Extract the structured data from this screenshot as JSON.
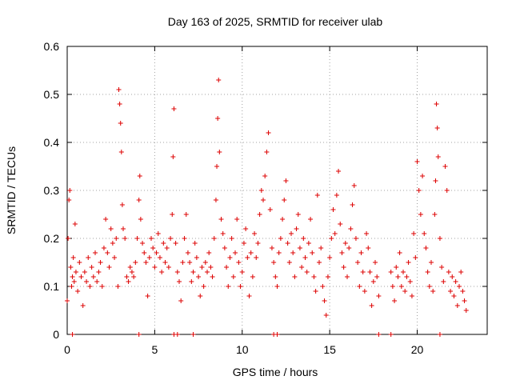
{
  "chart_data": {
    "type": "scatter",
    "title": "Day 163 of 2025, SRMTID for receiver ulab",
    "xlabel": "GPS time / hours",
    "ylabel": "SRMTID / TECUs",
    "xlim": [
      0,
      24
    ],
    "ylim": [
      0,
      0.6
    ],
    "xticks": [
      0,
      5,
      10,
      15,
      20
    ],
    "yticks": [
      0,
      0.1,
      0.2,
      0.3,
      0.4,
      0.5,
      0.6
    ],
    "ytick_labels": [
      "0",
      "0.1",
      "0.2",
      "0.3",
      "0.4",
      "0.5",
      "0.6"
    ],
    "grid": true,
    "marker": "+",
    "color": "#dd0000",
    "series": [
      {
        "name": "SRMTID",
        "points": [
          [
            0.0,
            0.07
          ],
          [
            0.05,
            0.2
          ],
          [
            0.1,
            0.28
          ],
          [
            0.15,
            0.3
          ],
          [
            0.2,
            0.14
          ],
          [
            0.25,
            0.1
          ],
          [
            0.3,
            0.12
          ],
          [
            0.35,
            0.16
          ],
          [
            0.4,
            0.11
          ],
          [
            0.45,
            0.23
          ],
          [
            0.5,
            0.13
          ],
          [
            0.6,
            0.09
          ],
          [
            0.7,
            0.15
          ],
          [
            0.8,
            0.12
          ],
          [
            0.9,
            0.06
          ],
          [
            1.0,
            0.13
          ],
          [
            1.1,
            0.11
          ],
          [
            1.2,
            0.16
          ],
          [
            1.3,
            0.1
          ],
          [
            1.4,
            0.14
          ],
          [
            1.5,
            0.12
          ],
          [
            1.6,
            0.17
          ],
          [
            1.7,
            0.11
          ],
          [
            1.8,
            0.13
          ],
          [
            1.9,
            0.15
          ],
          [
            2.0,
            0.1
          ],
          [
            2.1,
            0.18
          ],
          [
            2.2,
            0.24
          ],
          [
            2.3,
            0.17
          ],
          [
            2.4,
            0.14
          ],
          [
            2.5,
            0.22
          ],
          [
            2.6,
            0.19
          ],
          [
            2.7,
            0.16
          ],
          [
            2.8,
            0.2
          ],
          [
            2.9,
            0.1
          ],
          [
            2.95,
            0.51
          ],
          [
            3.0,
            0.48
          ],
          [
            3.05,
            0.44
          ],
          [
            3.1,
            0.38
          ],
          [
            3.15,
            0.27
          ],
          [
            3.2,
            0.22
          ],
          [
            3.3,
            0.2
          ],
          [
            3.4,
            0.12
          ],
          [
            3.5,
            0.11
          ],
          [
            3.6,
            0.14
          ],
          [
            3.7,
            0.13
          ],
          [
            3.8,
            0.12
          ],
          [
            3.9,
            0.15
          ],
          [
            4.0,
            0.2
          ],
          [
            4.1,
            0.28
          ],
          [
            4.15,
            0.33
          ],
          [
            4.2,
            0.24
          ],
          [
            4.3,
            0.19
          ],
          [
            4.4,
            0.17
          ],
          [
            4.5,
            0.15
          ],
          [
            4.6,
            0.08
          ],
          [
            4.7,
            0.16
          ],
          [
            4.8,
            0.2
          ],
          [
            4.9,
            0.18
          ],
          [
            5.0,
            0.14
          ],
          [
            5.1,
            0.17
          ],
          [
            5.2,
            0.21
          ],
          [
            5.3,
            0.16
          ],
          [
            5.4,
            0.13
          ],
          [
            5.5,
            0.19
          ],
          [
            5.6,
            0.15
          ],
          [
            5.7,
            0.18
          ],
          [
            5.8,
            0.14
          ],
          [
            5.9,
            0.2
          ],
          [
            6.0,
            0.25
          ],
          [
            6.05,
            0.37
          ],
          [
            6.1,
            0.47
          ],
          [
            6.2,
            0.19
          ],
          [
            6.3,
            0.13
          ],
          [
            6.4,
            0.11
          ],
          [
            6.5,
            0.07
          ],
          [
            6.6,
            0.15
          ],
          [
            6.7,
            0.2
          ],
          [
            6.8,
            0.25
          ],
          [
            6.9,
            0.17
          ],
          [
            7.0,
            0.15
          ],
          [
            7.1,
            0.11
          ],
          [
            7.2,
            0.13
          ],
          [
            7.3,
            0.19
          ],
          [
            7.4,
            0.16
          ],
          [
            7.5,
            0.12
          ],
          [
            7.6,
            0.08
          ],
          [
            7.7,
            0.14
          ],
          [
            7.8,
            0.1
          ],
          [
            7.9,
            0.15
          ],
          [
            8.0,
            0.13
          ],
          [
            8.1,
            0.17
          ],
          [
            8.2,
            0.14
          ],
          [
            8.3,
            0.12
          ],
          [
            8.4,
            0.2
          ],
          [
            8.5,
            0.28
          ],
          [
            8.55,
            0.35
          ],
          [
            8.6,
            0.45
          ],
          [
            8.65,
            0.53
          ],
          [
            8.7,
            0.38
          ],
          [
            8.8,
            0.24
          ],
          [
            8.9,
            0.21
          ],
          [
            9.0,
            0.18
          ],
          [
            9.1,
            0.14
          ],
          [
            9.2,
            0.1
          ],
          [
            9.3,
            0.16
          ],
          [
            9.4,
            0.2
          ],
          [
            9.5,
            0.12
          ],
          [
            9.6,
            0.17
          ],
          [
            9.7,
            0.24
          ],
          [
            9.8,
            0.15
          ],
          [
            9.9,
            0.1
          ],
          [
            10.0,
            0.13
          ],
          [
            10.1,
            0.19
          ],
          [
            10.2,
            0.22
          ],
          [
            10.3,
            0.16
          ],
          [
            10.4,
            0.08
          ],
          [
            10.5,
            0.17
          ],
          [
            10.6,
            0.12
          ],
          [
            10.7,
            0.21
          ],
          [
            10.8,
            0.16
          ],
          [
            10.9,
            0.19
          ],
          [
            11.0,
            0.25
          ],
          [
            11.1,
            0.3
          ],
          [
            11.2,
            0.28
          ],
          [
            11.3,
            0.33
          ],
          [
            11.4,
            0.38
          ],
          [
            11.5,
            0.42
          ],
          [
            11.6,
            0.26
          ],
          [
            11.7,
            0.18
          ],
          [
            11.8,
            0.15
          ],
          [
            11.9,
            0.12
          ],
          [
            12.0,
            0.1
          ],
          [
            12.1,
            0.17
          ],
          [
            12.2,
            0.2
          ],
          [
            12.3,
            0.24
          ],
          [
            12.4,
            0.28
          ],
          [
            12.5,
            0.32
          ],
          [
            12.6,
            0.19
          ],
          [
            12.7,
            0.15
          ],
          [
            12.8,
            0.21
          ],
          [
            12.9,
            0.17
          ],
          [
            13.0,
            0.12
          ],
          [
            13.1,
            0.22
          ],
          [
            13.2,
            0.25
          ],
          [
            13.3,
            0.18
          ],
          [
            13.4,
            0.14
          ],
          [
            13.5,
            0.2
          ],
          [
            13.6,
            0.16
          ],
          [
            13.7,
            0.13
          ],
          [
            13.8,
            0.19
          ],
          [
            13.9,
            0.24
          ],
          [
            14.0,
            0.17
          ],
          [
            14.1,
            0.12
          ],
          [
            14.2,
            0.09
          ],
          [
            14.3,
            0.29
          ],
          [
            14.4,
            0.15
          ],
          [
            14.5,
            0.18
          ],
          [
            14.6,
            0.1
          ],
          [
            14.7,
            0.07
          ],
          [
            14.8,
            0.04
          ],
          [
            14.9,
            0.12
          ],
          [
            15.0,
            0.16
          ],
          [
            15.1,
            0.2
          ],
          [
            15.2,
            0.26
          ],
          [
            15.3,
            0.21
          ],
          [
            15.4,
            0.29
          ],
          [
            15.5,
            0.34
          ],
          [
            15.6,
            0.23
          ],
          [
            15.7,
            0.17
          ],
          [
            15.8,
            0.14
          ],
          [
            15.9,
            0.19
          ],
          [
            16.0,
            0.12
          ],
          [
            16.1,
            0.18
          ],
          [
            16.2,
            0.22
          ],
          [
            16.3,
            0.27
          ],
          [
            16.4,
            0.31
          ],
          [
            16.5,
            0.2
          ],
          [
            16.6,
            0.15
          ],
          [
            16.7,
            0.1
          ],
          [
            16.8,
            0.17
          ],
          [
            16.9,
            0.13
          ],
          [
            17.0,
            0.09
          ],
          [
            17.1,
            0.21
          ],
          [
            17.2,
            0.18
          ],
          [
            17.3,
            0.13
          ],
          [
            17.4,
            0.06
          ],
          [
            17.5,
            0.11
          ],
          [
            17.6,
            0.15
          ],
          [
            17.7,
            0.12
          ],
          [
            17.8,
            0.08
          ],
          [
            18.5,
            0.13
          ],
          [
            18.6,
            0.1
          ],
          [
            18.7,
            0.07
          ],
          [
            18.8,
            0.14
          ],
          [
            18.9,
            0.12
          ],
          [
            19.0,
            0.17
          ],
          [
            19.1,
            0.1
          ],
          [
            19.2,
            0.13
          ],
          [
            19.3,
            0.09
          ],
          [
            19.4,
            0.12
          ],
          [
            19.5,
            0.15
          ],
          [
            19.6,
            0.11
          ],
          [
            19.7,
            0.08
          ],
          [
            19.8,
            0.21
          ],
          [
            19.9,
            0.16
          ],
          [
            20.0,
            0.36
          ],
          [
            20.1,
            0.3
          ],
          [
            20.2,
            0.25
          ],
          [
            20.3,
            0.33
          ],
          [
            20.4,
            0.21
          ],
          [
            20.5,
            0.18
          ],
          [
            20.6,
            0.13
          ],
          [
            20.7,
            0.1
          ],
          [
            20.8,
            0.15
          ],
          [
            20.9,
            0.09
          ],
          [
            21.0,
            0.25
          ],
          [
            21.05,
            0.32
          ],
          [
            21.1,
            0.48
          ],
          [
            21.15,
            0.43
          ],
          [
            21.2,
            0.37
          ],
          [
            21.3,
            0.2
          ],
          [
            21.4,
            0.14
          ],
          [
            21.5,
            0.11
          ],
          [
            21.6,
            0.35
          ],
          [
            21.7,
            0.3
          ],
          [
            21.8,
            0.13
          ],
          [
            21.9,
            0.09
          ],
          [
            22.0,
            0.12
          ],
          [
            22.1,
            0.08
          ],
          [
            22.2,
            0.11
          ],
          [
            22.3,
            0.06
          ],
          [
            22.4,
            0.1
          ],
          [
            22.5,
            0.13
          ],
          [
            22.6,
            0.09
          ],
          [
            22.7,
            0.07
          ],
          [
            22.8,
            0.05
          ],
          [
            0.3,
            0.0
          ],
          [
            4.1,
            0.0
          ],
          [
            6.1,
            0.0
          ],
          [
            6.3,
            0.0
          ],
          [
            7.2,
            0.0
          ],
          [
            11.8,
            0.0
          ],
          [
            12.0,
            0.0
          ],
          [
            17.8,
            0.0
          ],
          [
            18.5,
            0.0
          ],
          [
            21.3,
            0.0
          ]
        ]
      }
    ]
  }
}
